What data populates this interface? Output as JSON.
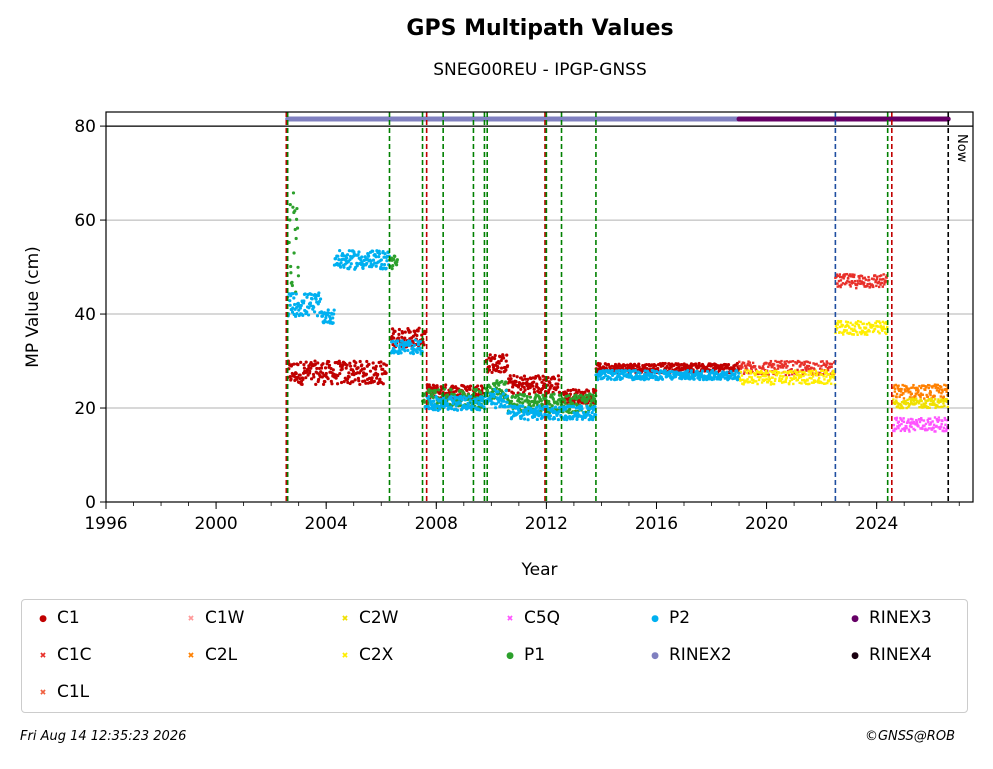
{
  "chart_data": {
    "type": "scatter",
    "title": "GPS Multipath Values",
    "subtitle": "SNEG00REU - IPGP-GNSS",
    "xlabel": "Year",
    "ylabel": "MP Value (cm)",
    "xlim": [
      1996,
      2027.5
    ],
    "ylim": [
      0,
      83
    ],
    "x_ticks": [
      1996,
      2000,
      2004,
      2008,
      2012,
      2016,
      2020,
      2024
    ],
    "y_ticks": [
      0,
      20,
      40,
      60,
      80
    ],
    "grid": "horizontal",
    "legend_placement": "below",
    "now_label": "Now",
    "now_year": 2026.6,
    "event_lines": [
      {
        "year": 2002.55,
        "color": "#c00000"
      },
      {
        "year": 2002.6,
        "color": "#008000"
      },
      {
        "year": 2006.3,
        "color": "#008000"
      },
      {
        "year": 2007.5,
        "color": "#008000"
      },
      {
        "year": 2007.65,
        "color": "#c00000"
      },
      {
        "year": 2008.25,
        "color": "#008000"
      },
      {
        "year": 2009.35,
        "color": "#008000"
      },
      {
        "year": 2009.75,
        "color": "#008000"
      },
      {
        "year": 2009.85,
        "color": "#008000"
      },
      {
        "year": 2011.95,
        "color": "#c00000"
      },
      {
        "year": 2012.0,
        "color": "#008000"
      },
      {
        "year": 2012.55,
        "color": "#008000"
      },
      {
        "year": 2013.8,
        "color": "#008000"
      },
      {
        "year": 2022.5,
        "color": "#1f4ea0"
      },
      {
        "year": 2024.4,
        "color": "#008000"
      },
      {
        "year": 2024.55,
        "color": "#c00000"
      }
    ],
    "rinex_bars": [
      {
        "name": "RINEX2",
        "from": 2002.6,
        "to": 2019.0,
        "y": 81.5,
        "color": "#8080c0"
      },
      {
        "name": "RINEX3",
        "from": 2019.0,
        "to": 2026.6,
        "y": 81.5,
        "color": "#660066"
      }
    ],
    "series": [
      {
        "name": "C1",
        "color": "#c00000",
        "marker": "dot",
        "segments": [
          {
            "from": 2002.6,
            "to": 2006.2,
            "y": 27.5,
            "spread": 2.5
          },
          {
            "from": 2006.35,
            "to": 2007.6,
            "y": 35,
            "spread": 2
          },
          {
            "from": 2007.65,
            "to": 2009.7,
            "y": 23.5,
            "spread": 1.5
          },
          {
            "from": 2009.8,
            "to": 2010.6,
            "y": 29.5,
            "spread": 2
          },
          {
            "from": 2010.6,
            "to": 2012.5,
            "y": 25,
            "spread": 2
          },
          {
            "from": 2012.6,
            "to": 2013.8,
            "y": 22.5,
            "spread": 1.5
          },
          {
            "from": 2013.8,
            "to": 2019.0,
            "y": 28.5,
            "spread": 1
          }
        ]
      },
      {
        "name": "C1C",
        "color": "#e8302a",
        "marker": "x",
        "segments": [
          {
            "from": 2019.0,
            "to": 2022.5,
            "y": 28.5,
            "spread": 1.5
          },
          {
            "from": 2022.5,
            "to": 2024.4,
            "y": 47,
            "spread": 1.5
          }
        ]
      },
      {
        "name": "C1L",
        "color": "#f06040",
        "marker": "x",
        "segments": []
      },
      {
        "name": "C1W",
        "color": "#ff9999",
        "marker": "x",
        "segments": []
      },
      {
        "name": "C2L",
        "color": "#ff8000",
        "marker": "x",
        "segments": [
          {
            "from": 2024.6,
            "to": 2026.6,
            "y": 23.5,
            "spread": 1.5
          }
        ]
      },
      {
        "name": "C2W",
        "color": "#f0e000",
        "marker": "x",
        "segments": [
          {
            "from": 2024.6,
            "to": 2026.6,
            "y": 21,
            "spread": 1
          }
        ]
      },
      {
        "name": "C2X",
        "color": "#ffee00",
        "marker": "x",
        "segments": [
          {
            "from": 2019.0,
            "to": 2022.5,
            "y": 26.5,
            "spread": 1.5
          },
          {
            "from": 2022.5,
            "to": 2024.4,
            "y": 37,
            "spread": 1.5
          }
        ]
      },
      {
        "name": "C5Q",
        "color": "#ff55ff",
        "marker": "x",
        "segments": [
          {
            "from": 2024.6,
            "to": 2026.6,
            "y": 16.5,
            "spread": 1.5
          }
        ]
      },
      {
        "name": "P1",
        "color": "#2ca02c",
        "marker": "dot",
        "segments": [
          {
            "from": 2002.65,
            "to": 2003.0,
            "y": 55,
            "spread": 12
          },
          {
            "from": 2006.3,
            "to": 2006.6,
            "y": 51,
            "spread": 1.5
          },
          {
            "from": 2007.5,
            "to": 2009.7,
            "y": 22,
            "spread": 2
          },
          {
            "from": 2009.8,
            "to": 2010.6,
            "y": 24,
            "spread": 2
          },
          {
            "from": 2010.6,
            "to": 2013.8,
            "y": 21,
            "spread": 2
          }
        ]
      },
      {
        "name": "P2",
        "color": "#00b0f0",
        "marker": "dot",
        "segments": [
          {
            "from": 2002.6,
            "to": 2003.8,
            "y": 42,
            "spread": 2.5
          },
          {
            "from": 2003.8,
            "to": 2004.3,
            "y": 39.5,
            "spread": 1.5
          },
          {
            "from": 2004.3,
            "to": 2006.3,
            "y": 51.5,
            "spread": 2
          },
          {
            "from": 2006.35,
            "to": 2007.5,
            "y": 33,
            "spread": 1.5
          },
          {
            "from": 2007.6,
            "to": 2009.8,
            "y": 21,
            "spread": 1.5
          },
          {
            "from": 2009.8,
            "to": 2010.6,
            "y": 22,
            "spread": 2
          },
          {
            "from": 2010.6,
            "to": 2013.8,
            "y": 19,
            "spread": 1.5
          },
          {
            "from": 2013.8,
            "to": 2019.0,
            "y": 27,
            "spread": 1
          }
        ]
      },
      {
        "name": "RINEX2",
        "color": "#8080c0",
        "marker": "dot",
        "segments": []
      },
      {
        "name": "RINEX3",
        "color": "#660066",
        "marker": "dot",
        "segments": []
      },
      {
        "name": "RINEX4",
        "color": "#1a0010",
        "marker": "dot",
        "segments": []
      }
    ]
  },
  "footer": {
    "timestamp": "Fri Aug 14 12:35:23 2026",
    "copyright": "©GNSS@ROB"
  }
}
